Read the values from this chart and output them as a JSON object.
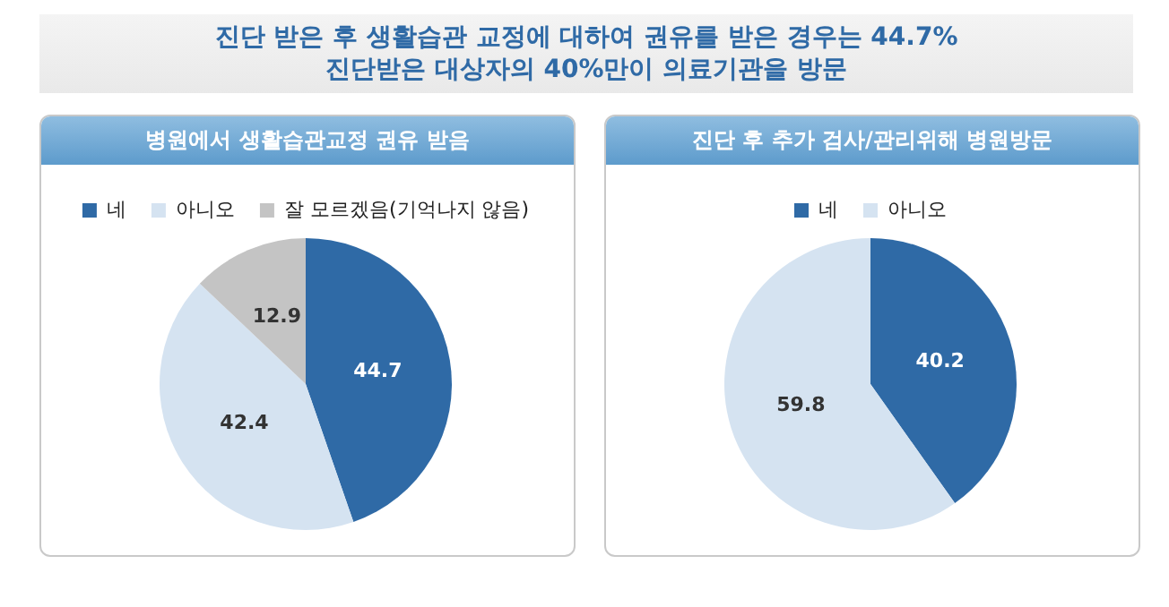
{
  "chart_data": [
    {
      "type": "pie",
      "title": "병원에서 생활습관교정 권유 받음",
      "annotations": [
        "진단 받은 후 생활습관 교정에 대하여 권유를 받은 경우는 44.7%",
        "진단받은 대상자의 40%만이 의료기관을 방문"
      ],
      "categories": [
        "네",
        "아니오",
        "잘 모르겠음(기억나지 않음)"
      ],
      "values": [
        44.7,
        42.4,
        12.9
      ],
      "colors": [
        "#2f6aa6",
        "#d5e3f1",
        "#c4c4c4"
      ],
      "data_labels": true,
      "legend": "top"
    },
    {
      "type": "pie",
      "title": "진단 후 추가 검사/관리위해 병원방문",
      "categories": [
        "네",
        "아니오"
      ],
      "values": [
        40.2,
        59.8
      ],
      "colors": [
        "#2f6aa6",
        "#d5e3f1"
      ],
      "data_labels": true,
      "legend": "top"
    }
  ]
}
